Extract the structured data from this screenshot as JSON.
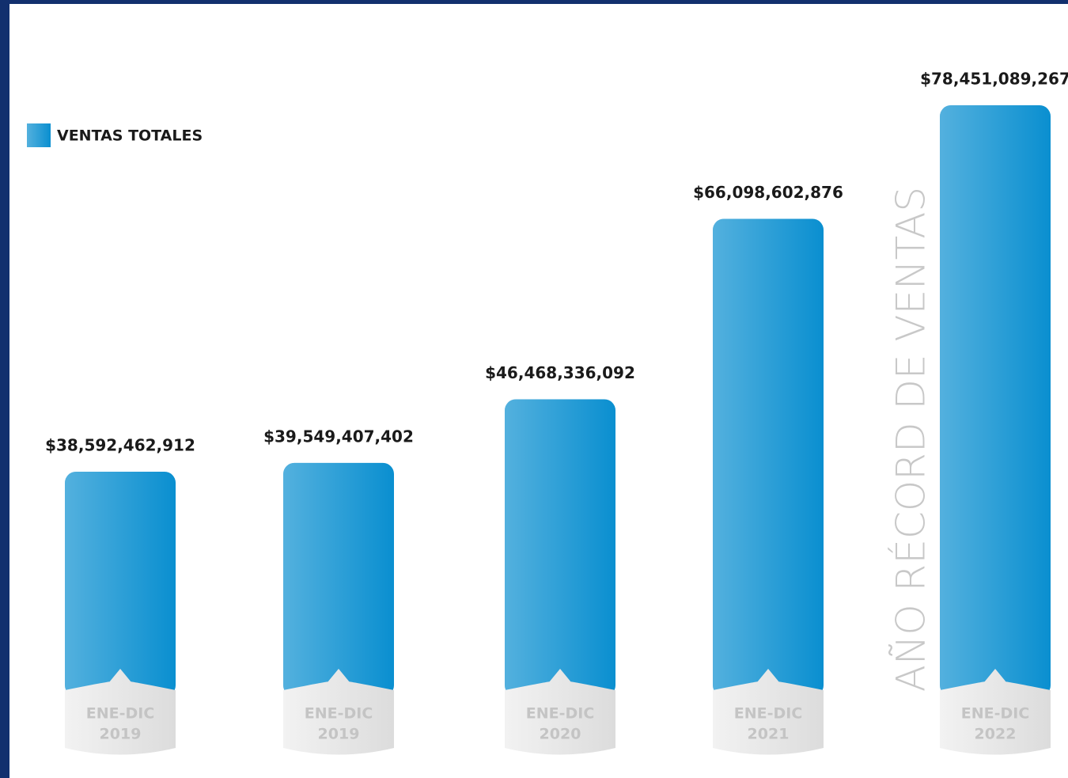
{
  "chart_data": {
    "type": "bar",
    "annotation": "AÑO RÉCORD DE VENTAS",
    "categories": [
      [
        "ENE-DIC",
        "2019"
      ],
      [
        "ENE-DIC",
        "2019"
      ],
      [
        "ENE-DIC",
        "2020"
      ],
      [
        "ENE-DIC",
        "2021"
      ],
      [
        "ENE-DIC",
        "2022"
      ]
    ],
    "series": [
      {
        "name": "VENTAS TOTALES",
        "color": "#0a8fd0",
        "values": [
          38592462912,
          39549407402,
          46468336092,
          66098602876,
          78451089267
        ],
        "value_labels": [
          "$38,592,462,912",
          "$39,549,407,402",
          "$46,468,336,092",
          "$66,098,602,876",
          "$78,451,089,267"
        ]
      }
    ],
    "ylim": [
      15000000000,
      80000000000
    ]
  }
}
